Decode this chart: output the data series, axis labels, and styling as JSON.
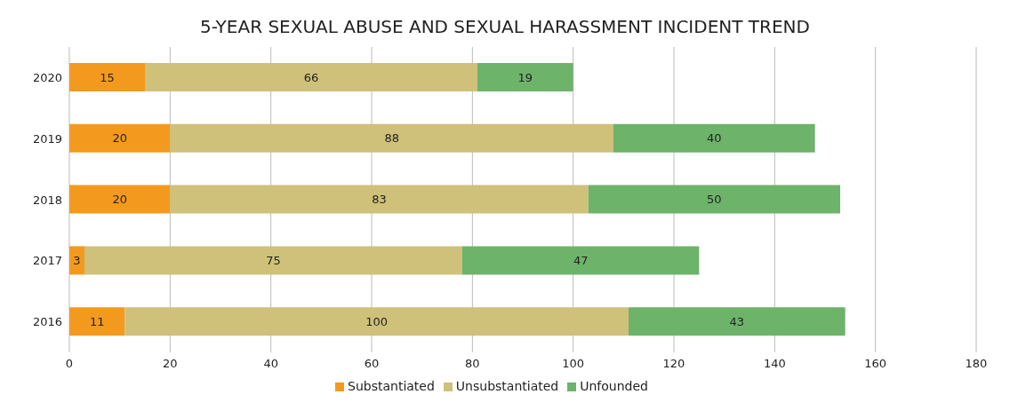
{
  "chart_data": {
    "type": "bar",
    "title": "5-YEAR SEXUAL ABUSE AND SEXUAL HARASSMENT INCIDENT TREND",
    "orientation": "horizontal",
    "stacked": true,
    "categories": [
      "2020",
      "2019",
      "2018",
      "2017",
      "2016"
    ],
    "series": [
      {
        "name": "Substantiated",
        "color": "#f39a1e",
        "values": [
          15,
          20,
          20,
          3,
          11
        ]
      },
      {
        "name": "Unsubstantiated",
        "color": "#cfc07a",
        "values": [
          66,
          88,
          83,
          75,
          100
        ]
      },
      {
        "name": "Unfounded",
        "color": "#6db36a",
        "values": [
          19,
          40,
          50,
          47,
          43
        ]
      }
    ],
    "xlim": [
      0,
      180
    ],
    "xticks": [
      0,
      20,
      40,
      60,
      80,
      100,
      120,
      140,
      160,
      180
    ],
    "grid": "x",
    "legend": "bottom",
    "data_labels": true
  }
}
